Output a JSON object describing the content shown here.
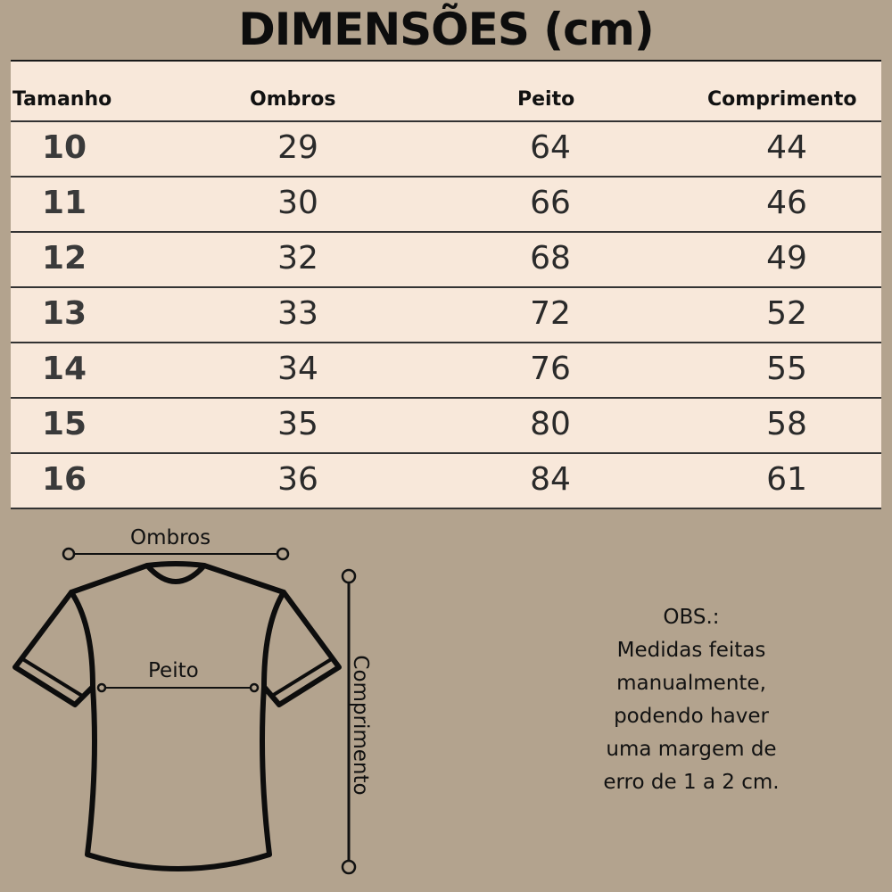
{
  "title": "DIMENSÕES (cm)",
  "table": {
    "headers": [
      "Tamanho",
      "Ombros",
      "Peito",
      "Comprimento"
    ],
    "rows": [
      [
        "10",
        "29",
        "64",
        "44"
      ],
      [
        "11",
        "30",
        "66",
        "46"
      ],
      [
        "12",
        "32",
        "68",
        "49"
      ],
      [
        "13",
        "33",
        "72",
        "52"
      ],
      [
        "14",
        "34",
        "76",
        "55"
      ],
      [
        "15",
        "35",
        "80",
        "58"
      ],
      [
        "16",
        "36",
        "84",
        "61"
      ]
    ]
  },
  "diagram": {
    "shoulders_label": "Ombros",
    "chest_label": "Peito",
    "length_label": "Comprimento",
    "icon": "tshirt-outline-icon"
  },
  "note": {
    "lines": [
      "OBS.:",
      "Medidas feitas",
      "manualmente,",
      "podendo haver",
      "uma margem de",
      "erro de 1 a 2 cm."
    ]
  },
  "colors": {
    "background": "#b3a38e",
    "table": "#f8e8da",
    "ink": "#111111"
  }
}
